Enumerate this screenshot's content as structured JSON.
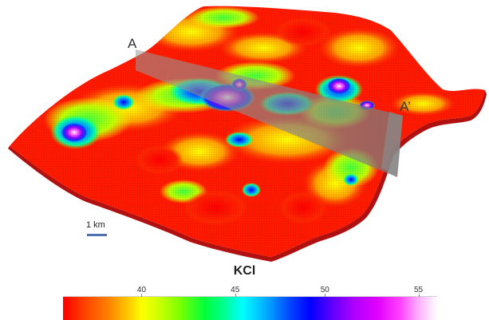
{
  "map": {
    "section_start_label": "A",
    "section_end_label": "A’",
    "scale_bar_label": "1 km"
  },
  "legend": {
    "title": "KCl",
    "ticks": [
      {
        "value": 40,
        "label": "40",
        "fraction": 0.21
      },
      {
        "value": 45,
        "label": "45",
        "fraction": 0.46
      },
      {
        "value": 50,
        "label": "50",
        "fraction": 0.7
      },
      {
        "value": 55,
        "label": "55",
        "fraction": 0.95
      }
    ],
    "range": [
      35.5,
      56
    ],
    "colormap": [
      "#ff0000",
      "#ffff00",
      "#00ff00",
      "#00ffff",
      "#0000ff",
      "#ff00ff",
      "#ffffff"
    ]
  }
}
